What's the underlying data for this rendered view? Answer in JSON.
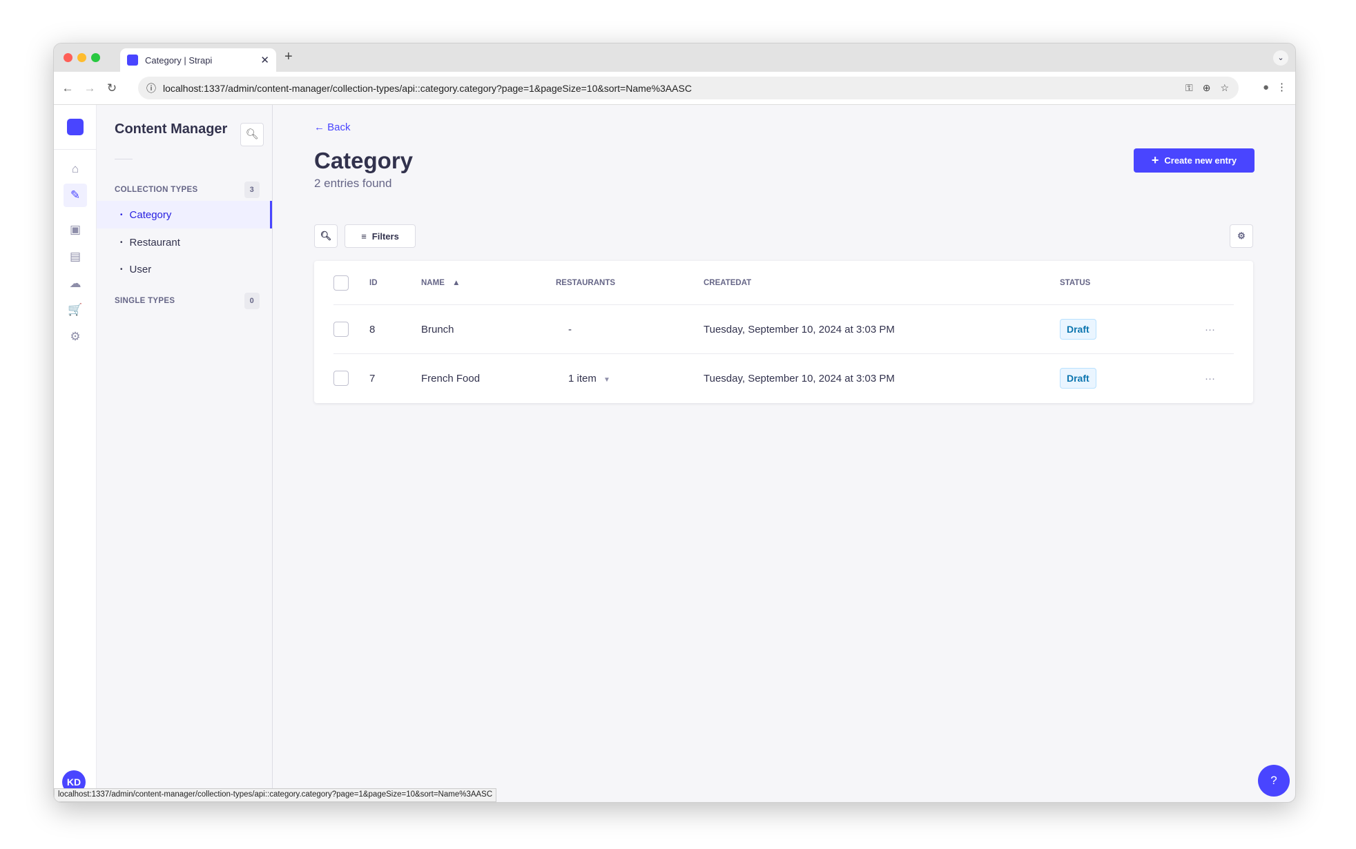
{
  "browser": {
    "tab_title": "Category | Strapi",
    "url": "localhost:1337/admin/content-manager/collection-types/api::category.category?page=1&pageSize=10&sort=Name%3AASC",
    "status_url": "localhost:1337/admin/content-manager/collection-types/api::category.category?page=1&pageSize=10&sort=Name%3AASC"
  },
  "rail": {
    "avatar": "KD",
    "icons": [
      "home-icon",
      "content-manager-icon",
      "media-library-icon",
      "content-type-builder-icon",
      "cloud-icon",
      "marketplace-icon",
      "settings-icon"
    ]
  },
  "sidebar": {
    "title": "Content Manager",
    "collection_label": "COLLECTION TYPES",
    "collection_count": "3",
    "items": [
      {
        "label": "Category"
      },
      {
        "label": "Restaurant"
      },
      {
        "label": "User"
      }
    ],
    "single_label": "SINGLE TYPES",
    "single_count": "0"
  },
  "main": {
    "back": "Back",
    "title": "Category",
    "subtitle": "2 entries found",
    "create": "Create new entry",
    "filters": "Filters"
  },
  "table": {
    "headers": [
      "ID",
      "NAME",
      "RESTAURANTS",
      "CREATEDAT",
      "STATUS"
    ],
    "rows": [
      {
        "id": "8",
        "name": "Brunch",
        "restaurants": "-",
        "created": "Tuesday, September 10, 2024 at 3:03 PM",
        "status": "Draft"
      },
      {
        "id": "7",
        "name": "French Food",
        "restaurants": "1 item",
        "created": "Tuesday, September 10, 2024 at 3:03 PM",
        "status": "Draft"
      }
    ]
  },
  "colors": {
    "primary": "#4945ff",
    "draft_badge": "#0c75af"
  }
}
